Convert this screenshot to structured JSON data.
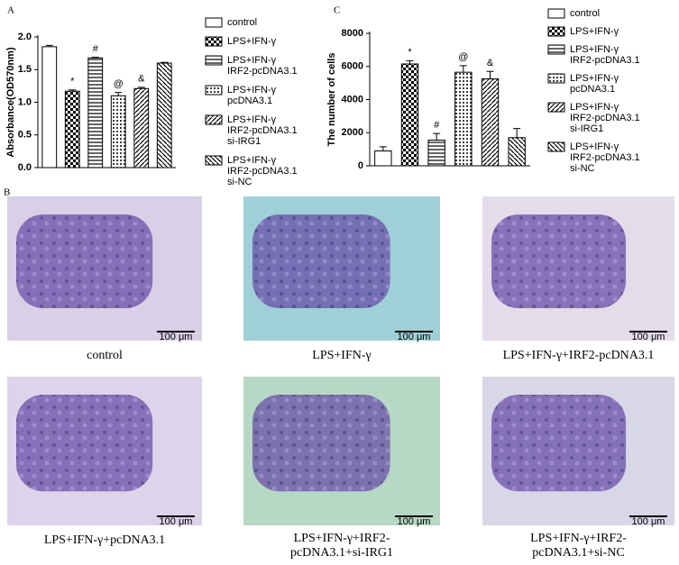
{
  "chart_data": [
    {
      "type": "bar",
      "label": "A",
      "y_label": "Absorbance(OD570nm)",
      "ylim": [
        0,
        2.0
      ],
      "yticks": [
        {
          "value": 0,
          "label": "0.0"
        },
        {
          "value": 0.5,
          "label": "0.5"
        },
        {
          "value": 1.0,
          "label": "1.0"
        },
        {
          "value": 1.5,
          "label": "1.5"
        },
        {
          "value": 2.0,
          "label": "2.0"
        }
      ],
      "series": [
        {
          "name": [
            "control"
          ],
          "pattern": "none",
          "values": [
            1.85
          ],
          "errors": [
            0.02
          ]
        },
        {
          "name": [
            "LPS+IFN-γ"
          ],
          "pattern": "checker",
          "values": [
            1.17
          ],
          "errors": [
            0.02
          ],
          "annotation": "*"
        },
        {
          "name": [
            "LPS+IFN-γ",
            "IRF2-pcDNA3.1"
          ],
          "pattern": "hlines",
          "values": [
            1.68
          ],
          "errors": [
            0.01
          ],
          "annotation": "#"
        },
        {
          "name": [
            "LPS+IFN-γ",
            "pcDNA3.1"
          ],
          "pattern": "dots",
          "values": [
            1.1
          ],
          "errors": [
            0.05
          ],
          "annotation": "@"
        },
        {
          "name": [
            "LPS+IFN-γ",
            "IRF2-pcDNA3.1",
            "si-IRG1"
          ],
          "pattern": "diag",
          "values": [
            1.21
          ],
          "errors": [
            0.02
          ],
          "annotation": "&"
        },
        {
          "name": [
            "LPS+IFN-γ",
            "IRF2-pcDNA3.1",
            "si-NC"
          ],
          "pattern": "rdiag",
          "values": [
            1.6
          ],
          "errors": [
            0.01
          ]
        }
      ]
    },
    {
      "type": "bar",
      "label": "C",
      "y_label": "The number of cells",
      "ylim": [
        0,
        8000
      ],
      "yticks": [
        0,
        2000,
        4000,
        6000,
        8000
      ],
      "series": [
        {
          "name": [
            "control"
          ],
          "pattern": "none",
          "values": [
            900
          ],
          "errors": [
            250
          ]
        },
        {
          "name": [
            "LPS+IFN-γ"
          ],
          "pattern": "checker",
          "values": [
            6150
          ],
          "errors": [
            200
          ],
          "annotation": "*"
        },
        {
          "name": [
            "LPS+IFN-γ",
            "IRF2-pcDNA3.1"
          ],
          "pattern": "hlines",
          "values": [
            1550
          ],
          "errors": [
            400
          ],
          "annotation": "#"
        },
        {
          "name": [
            "LPS+IFN-γ",
            "pcDNA3.1"
          ],
          "pattern": "dots",
          "values": [
            5650
          ],
          "errors": [
            400
          ],
          "annotation": "@"
        },
        {
          "name": [
            "LPS+IFN-γ",
            "IRF2-pcDNA3.1",
            "si-IRG1"
          ],
          "pattern": "diag",
          "values": [
            5250
          ],
          "errors": [
            450
          ],
          "annotation": "&"
        },
        {
          "name": [
            "LPS+IFN-γ",
            "IRF2-pcDNA3.1",
            "si-NC"
          ],
          "pattern": "rdiag",
          "values": [
            1700
          ],
          "errors": [
            550
          ]
        }
      ]
    }
  ],
  "images": {
    "label": "B",
    "items": [
      {
        "caption": [
          "control"
        ],
        "scale": "100 μm"
      },
      {
        "caption": [
          "LPS+IFN-γ"
        ],
        "scale": "100 μm"
      },
      {
        "caption": [
          "LPS+IFN-γ+IRF2-pcDNA3.1"
        ],
        "scale": "100 μm"
      },
      {
        "caption": [
          "LPS+IFN-γ+pcDNA3.1"
        ],
        "scale": "100 μm"
      },
      {
        "caption": [
          "LPS+IFN-γ+IRF2-",
          "pcDNA3.1+si-IRG1"
        ],
        "scale": "100 μm"
      },
      {
        "caption": [
          "LPS+IFN-γ+IRF2-",
          "pcDNA3.1+si-NC"
        ],
        "scale": "100 μm"
      }
    ]
  }
}
